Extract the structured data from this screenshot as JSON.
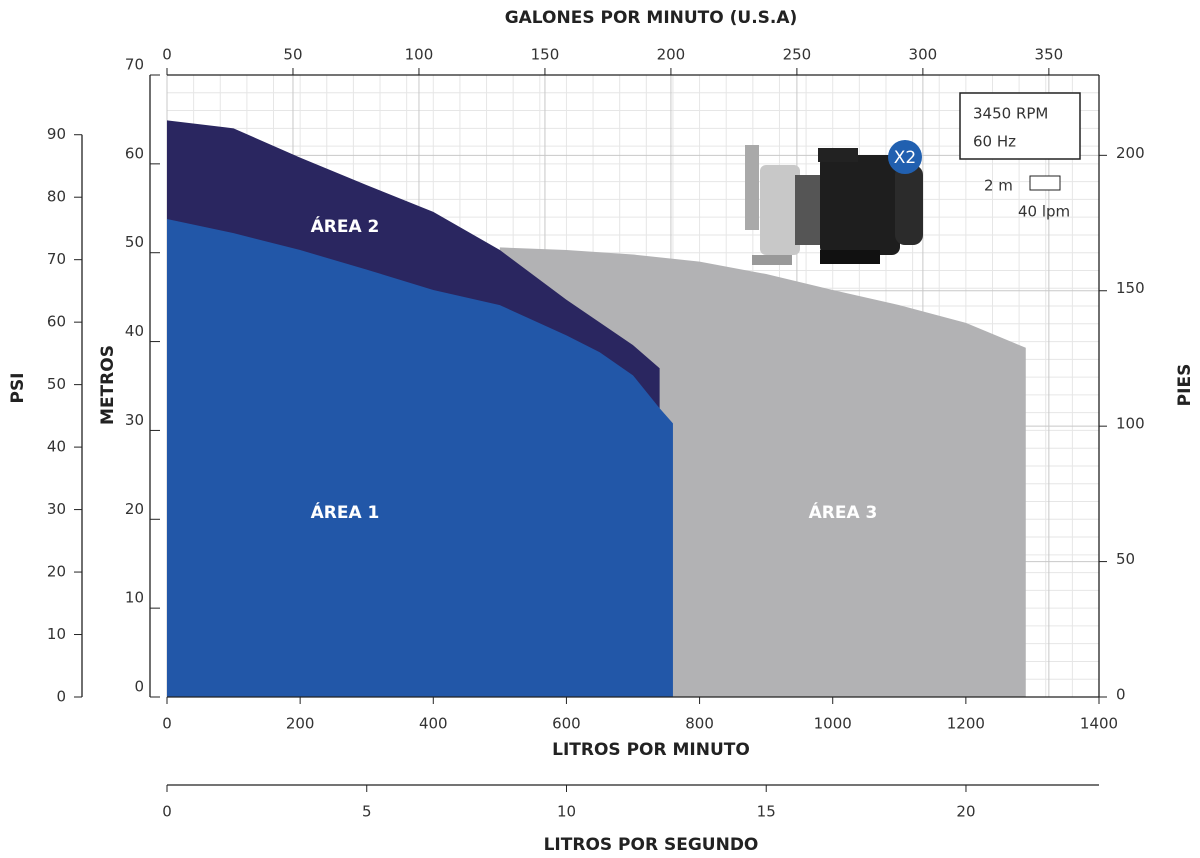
{
  "chart_data": {
    "type": "area",
    "xlabel": "LITROS POR MINUTO",
    "xlim": [
      0,
      1400
    ],
    "xticks": [
      0,
      200,
      400,
      600,
      800,
      1000,
      1200,
      1400
    ],
    "x2label": "GALONES POR MINUTO (U.S.A)",
    "x2lim": [
      0,
      369.9
    ],
    "x2ticks": [
      0,
      50,
      100,
      150,
      200,
      250,
      300,
      350
    ],
    "x3label": "LITROS POR SEGUNDO",
    "x3lim": [
      0,
      23.33
    ],
    "x3ticks": [
      0,
      5,
      10,
      15,
      20
    ],
    "ylabel": "METROS",
    "ylim": [
      0,
      70
    ],
    "yticks": [
      0,
      10,
      20,
      30,
      40,
      50,
      60,
      70
    ],
    "y2label": "PIES",
    "y2lim": [
      0,
      229.66
    ],
    "y2ticks": [
      0,
      50,
      100,
      150,
      200
    ],
    "y3label": "PSI",
    "y3lim": [
      0,
      99.56
    ],
    "y3ticks": [
      0,
      10,
      20,
      30,
      40,
      50,
      60,
      70,
      80,
      90
    ],
    "grid_step": {
      "x": 40,
      "y": 2,
      "x_label": "40 lpm",
      "y_label": "2 m"
    },
    "info": [
      "3450 RPM",
      "60 Hz"
    ],
    "badge": "X2",
    "series": [
      {
        "name": "ÁREA 3",
        "color": "#b2b2b4",
        "x": [
          500,
          600,
          700,
          800,
          900,
          1000,
          1100,
          1200,
          1290
        ],
        "values": [
          50.6,
          50.3,
          49.8,
          49.0,
          47.6,
          45.8,
          44.1,
          42.1,
          39.3
        ]
      },
      {
        "name": "ÁREA 2",
        "color": "#2a2660",
        "x": [
          0,
          100,
          200,
          300,
          400,
          500,
          600,
          700,
          740
        ],
        "values": [
          64.9,
          64.0,
          60.7,
          57.6,
          54.6,
          50.3,
          44.7,
          39.6,
          37.0
        ]
      },
      {
        "name": "ÁREA 1",
        "color": "#2257a8",
        "x": [
          0,
          100,
          200,
          300,
          400,
          500,
          600,
          650,
          700,
          740,
          760
        ],
        "values": [
          53.8,
          52.2,
          50.3,
          48.1,
          45.8,
          44.1,
          40.7,
          38.8,
          36.2,
          32.5,
          30.8
        ]
      }
    ]
  }
}
